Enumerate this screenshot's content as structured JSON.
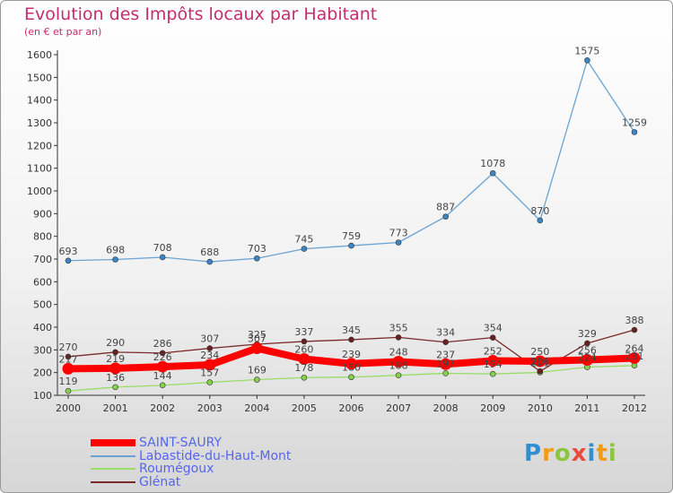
{
  "title": "Evolution des Impôts locaux par Habitant",
  "subtitle": "(en € et par an)",
  "logo": {
    "text": "Proxiti",
    "letters": [
      {
        "ch": "P",
        "color": "#2f8fd0"
      },
      {
        "ch": "r",
        "color": "#f39c12"
      },
      {
        "ch": "o",
        "color": "#8cc63f"
      },
      {
        "ch": "x",
        "color": "#e74c3c"
      },
      {
        "ch": "i",
        "color": "#2f8fd0"
      },
      {
        "ch": "t",
        "color": "#f39c12"
      },
      {
        "ch": "i",
        "color": "#8cc63f"
      }
    ]
  },
  "chart_data": {
    "type": "line",
    "x": [
      "2000",
      "2001",
      "2002",
      "2003",
      "2004",
      "2005",
      "2006",
      "2007",
      "2008",
      "2009",
      "2010",
      "2011",
      "2012"
    ],
    "ylim": [
      100,
      1600
    ],
    "yticks": [
      100,
      200,
      300,
      400,
      500,
      600,
      700,
      800,
      900,
      1000,
      1100,
      1200,
      1300,
      1400,
      1500,
      1600
    ],
    "grid": false,
    "legend_position": "bottom-left",
    "series": [
      {
        "name": "SAINT-SAURY",
        "color": "#ff0000",
        "width": 8,
        "values": [
          217,
          219,
          226,
          234,
          307,
          260,
          239,
          248,
          237,
          252,
          250,
          256,
          264
        ],
        "labels": [
          "217",
          "219",
          "226",
          "234",
          "307",
          "260",
          "239",
          "248",
          "237",
          "252",
          "250",
          "256",
          "264"
        ]
      },
      {
        "name": "Labastide-du-Haut-Mont",
        "color": "#6aa3d2",
        "width": 1.3,
        "marker": "#3d86c6",
        "values": [
          693,
          698,
          708,
          688,
          703,
          745,
          759,
          773,
          887,
          1078,
          870,
          1575,
          1259
        ],
        "labels": [
          "693",
          "698",
          "708",
          "688",
          "703",
          "745",
          "759",
          "773",
          "887",
          "1078",
          "870",
          "1575",
          "1259"
        ]
      },
      {
        "name": "Roumégoux",
        "color": "#99dd66",
        "width": 1.3,
        "marker": "#86d14c",
        "values": [
          119,
          136,
          144,
          157,
          169,
          178,
          180,
          188,
          197,
          194,
          201,
          224,
          231
        ],
        "labels": [
          "119",
          "136",
          "144",
          "157",
          "169",
          "178",
          "180",
          "188",
          "197",
          "194",
          "201",
          "224",
          "231"
        ]
      },
      {
        "name": "Glénat",
        "color": "#7a2a2a",
        "width": 1.3,
        "marker": "#6b1f1f",
        "values": [
          270,
          290,
          286,
          307,
          325,
          337,
          345,
          355,
          334,
          354,
          206,
          329,
          388
        ],
        "labels": [
          "270",
          "290",
          "286",
          "307",
          "325",
          "337",
          "345",
          "355",
          "334",
          "354",
          "206",
          "329",
          "388"
        ]
      }
    ]
  }
}
